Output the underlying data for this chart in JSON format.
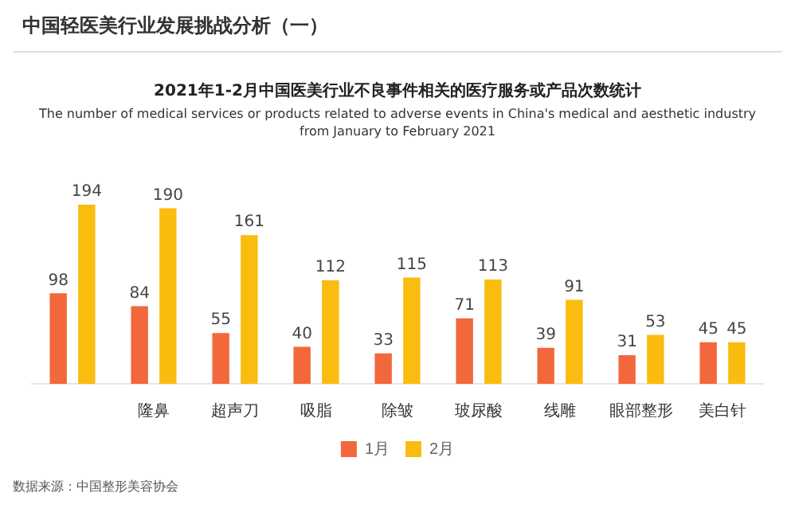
{
  "chart_data": {
    "type": "bar",
    "title": "2021年1-2月中国医美行业不良事件相关的医疗服务或产品次数统计",
    "subtitle": "The number of medical services or products related to adverse events in China's medical and aesthetic industry from January to February 2021",
    "categories": [
      null,
      "隆鼻",
      "超声刀",
      "吸脂",
      "除皱",
      "玻尿酸",
      "线雕",
      "眼部整形",
      "美白针"
    ],
    "series": [
      {
        "name": "1月",
        "color": "#f2683c",
        "values": [
          98,
          84,
          55,
          40,
          33,
          71,
          39,
          31,
          45
        ]
      },
      {
        "name": "2月",
        "color": "#fbbc10",
        "values": [
          194,
          190,
          161,
          112,
          115,
          113,
          91,
          53,
          45
        ]
      }
    ],
    "data_labels": true,
    "legend": "bottom",
    "grid": false,
    "annotations": [
      "中国轻医美行业发展挑战分析（一）",
      "数据来源：中国整形美容协会"
    ]
  }
}
